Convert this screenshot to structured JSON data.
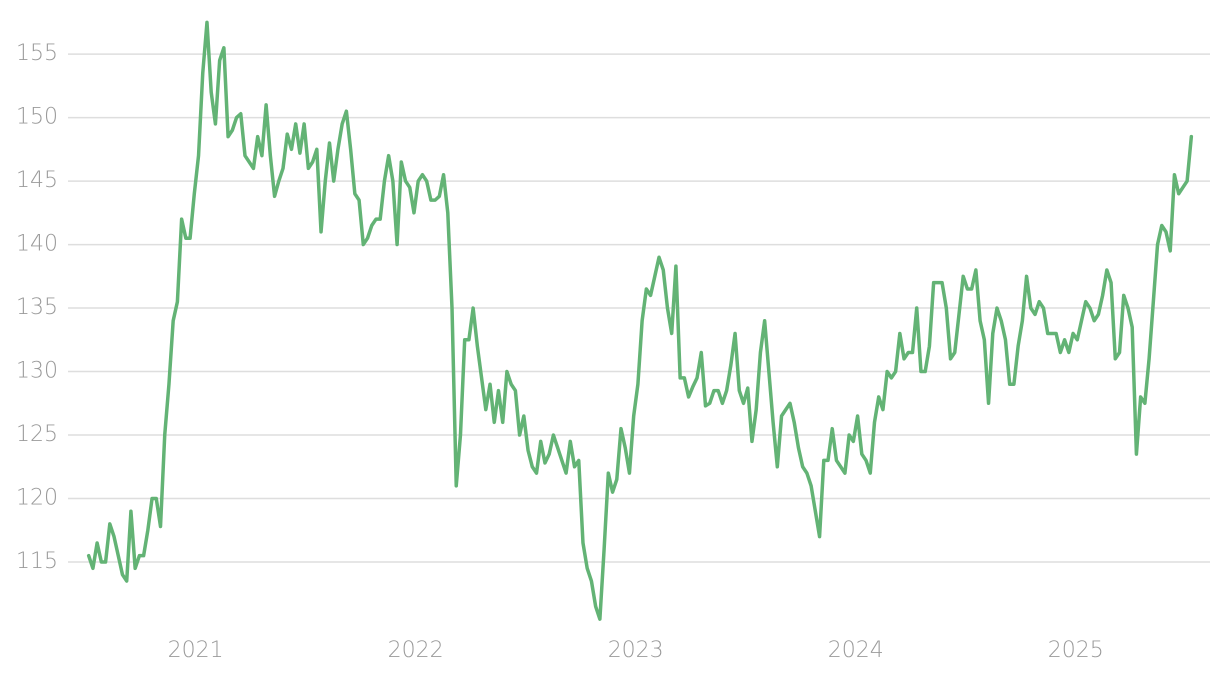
{
  "chart_data": {
    "type": "line",
    "color": "#63b375",
    "grid": true,
    "xlim": [
      2020.42,
      2025.61
    ],
    "ylim": [
      110,
      158
    ],
    "xticks": [
      2021,
      2022,
      2023,
      2024,
      2025
    ],
    "yticks": [
      115,
      120,
      125,
      130,
      135,
      140,
      145,
      150,
      155
    ],
    "x": [
      2020.514,
      2020.5332,
      2020.5524,
      2020.5716,
      2020.5908,
      2020.61,
      2020.6292,
      2020.6484,
      2020.6676,
      2020.6868,
      2020.706,
      2020.7252,
      2020.7444,
      2020.7636,
      2020.7828,
      2020.802,
      2020.8212,
      2020.8404,
      2020.8596,
      2020.8788,
      2020.898,
      2020.9172,
      2020.9364,
      2020.9556,
      2020.9748,
      2020.994,
      2021.0132,
      2021.0324,
      2021.0516,
      2021.0708,
      2021.09,
      2021.1092,
      2021.1284,
      2021.1476,
      2021.1668,
      2021.186,
      2021.2052,
      2021.2244,
      2021.2436,
      2021.2628,
      2021.282,
      2021.3012,
      2021.3204,
      2021.3396,
      2021.3588,
      2021.378,
      2021.3972,
      2021.4164,
      2021.4356,
      2021.4548,
      2021.474,
      2021.4932,
      2021.5124,
      2021.5316,
      2021.5508,
      2021.57,
      2021.5892,
      2021.6084,
      2021.6276,
      2021.6468,
      2021.666,
      2021.6852,
      2021.7044,
      2021.7236,
      2021.7428,
      2021.762,
      2021.7812,
      2021.8004,
      2021.8196,
      2021.8388,
      2021.858,
      2021.8772,
      2021.8964,
      2021.9156,
      2021.9348,
      2021.954,
      2021.9732,
      2021.9924,
      2022.0116,
      2022.0308,
      2022.05,
      2022.0692,
      2022.0884,
      2022.1076,
      2022.1268,
      2022.146,
      2022.1652,
      2022.1844,
      2022.2036,
      2022.2228,
      2022.242,
      2022.2612,
      2022.2804,
      2022.2996,
      2022.3188,
      2022.338,
      2022.3572,
      2022.3764,
      2022.3956,
      2022.4148,
      2022.434,
      2022.4532,
      2022.4724,
      2022.4916,
      2022.5108,
      2022.53,
      2022.5492,
      2022.5684,
      2022.5876,
      2022.6068,
      2022.626,
      2022.6452,
      2022.6644,
      2022.6836,
      2022.7028,
      2022.722,
      2022.7412,
      2022.7604,
      2022.7796,
      2022.7988,
      2022.818,
      2022.8372,
      2022.8564,
      2022.8756,
      2022.8948,
      2022.914,
      2022.9332,
      2022.9524,
      2022.9716,
      2022.9908,
      2023.01,
      2023.0292,
      2023.0484,
      2023.0676,
      2023.0868,
      2023.106,
      2023.1252,
      2023.1444,
      2023.1636,
      2023.1828,
      2023.202,
      2023.2212,
      2023.2404,
      2023.2596,
      2023.2788,
      2023.298,
      2023.3172,
      2023.3364,
      2023.3556,
      2023.3748,
      2023.394,
      2023.4132,
      2023.4324,
      2023.4516,
      2023.4708,
      2023.49,
      2023.5092,
      2023.5284,
      2023.5476,
      2023.5668,
      2023.586,
      2023.6052,
      2023.6244,
      2023.6436,
      2023.6628,
      2023.682,
      2023.7012,
      2023.7204,
      2023.7396,
      2023.7588,
      2023.778,
      2023.7972,
      2023.8164,
      2023.8356,
      2023.8548,
      2023.874,
      2023.8932,
      2023.9124,
      2023.9316,
      2023.9508,
      2023.97,
      2023.9892,
      2024.0084,
      2024.0276,
      2024.0468,
      2024.066,
      2024.0852,
      2024.1044,
      2024.1236,
      2024.1428,
      2024.162,
      2024.1812,
      2024.2004,
      2024.2196,
      2024.2388,
      2024.258,
      2024.2772,
      2024.2964,
      2024.3156,
      2024.3348,
      2024.354,
      2024.3732,
      2024.3924,
      2024.4116,
      2024.4308,
      2024.45,
      2024.4692,
      2024.4884,
      2024.5076,
      2024.5268,
      2024.546,
      2024.5652,
      2024.5844,
      2024.6036,
      2024.6228,
      2024.642,
      2024.6612,
      2024.6804,
      2024.6996,
      2024.7188,
      2024.738,
      2024.7572,
      2024.7764,
      2024.7956,
      2024.8148,
      2024.834,
      2024.8532,
      2024.8724,
      2024.8916,
      2024.9108,
      2024.93,
      2024.9492,
      2024.9684,
      2024.9876,
      2025.0068,
      2025.026,
      2025.0452,
      2025.0644,
      2025.0836,
      2025.1028,
      2025.122,
      2025.1412,
      2025.1604,
      2025.1796,
      2025.1988,
      2025.218,
      2025.2372,
      2025.2564,
      2025.2756,
      2025.2948,
      2025.314,
      2025.3332,
      2025.3524,
      2025.3716,
      2025.3908,
      2025.41,
      2025.4292,
      2025.4484,
      2025.4676,
      2025.4868,
      2025.506,
      2025.5252
    ],
    "values": [
      115.5,
      114.5,
      116.5,
      115,
      115,
      118,
      117,
      115.5,
      114,
      113.5,
      119,
      114.5,
      115.5,
      115.5,
      117.5,
      120,
      120,
      117.8,
      125,
      129,
      134,
      135.5,
      142,
      140.5,
      140.5,
      144,
      147,
      153.5,
      157.5,
      152,
      149.5,
      154.5,
      155.5,
      148.5,
      149,
      150,
      150.3,
      147,
      146.5,
      146,
      148.5,
      147,
      151,
      147,
      143.8,
      145,
      146,
      148.7,
      147.5,
      149.5,
      147.2,
      149.5,
      146,
      146.5,
      147.5,
      141,
      145,
      148,
      145,
      147.5,
      149.5,
      150.5,
      147.5,
      144,
      143.5,
      140,
      140.5,
      141.5,
      142,
      142,
      145,
      147,
      145,
      140,
      146.5,
      145,
      144.5,
      142.5,
      145,
      145.5,
      145,
      143.5,
      143.5,
      143.8,
      145.5,
      142.5,
      135,
      121,
      125,
      132.5,
      132.5,
      135,
      132,
      129.5,
      127,
      129,
      126,
      128.5,
      126,
      130,
      129,
      128.5,
      125,
      126.5,
      123.8,
      122.5,
      122,
      124.5,
      122.8,
      123.5,
      125,
      124,
      123,
      122,
      124.5,
      122.5,
      123,
      116.5,
      114.5,
      113.5,
      111.5,
      110.5,
      116,
      122,
      120.5,
      121.5,
      125.5,
      124,
      122,
      126.5,
      129,
      134,
      136.5,
      136,
      137.5,
      139,
      138,
      135,
      133,
      138.3,
      129.5,
      129.5,
      128,
      128.8,
      129.5,
      131.5,
      127.3,
      127.5,
      128.5,
      128.5,
      127.5,
      128.5,
      130.5,
      133,
      128.5,
      127.5,
      128.7,
      124.5,
      127,
      131.5,
      134,
      130,
      126,
      122.5,
      126.5,
      127,
      127.5,
      126,
      124,
      122.5,
      122,
      121,
      119,
      117,
      123,
      123,
      125.5,
      123,
      122.5,
      122,
      125,
      124.5,
      126.5,
      123.5,
      123,
      122,
      126,
      128,
      127,
      130,
      129.5,
      130,
      133,
      131,
      131.5,
      131.5,
      135,
      130,
      130,
      132,
      137,
      137,
      137,
      135,
      131,
      131.5,
      134.5,
      137.5,
      136.5,
      136.5,
      138,
      134,
      132.5,
      127.5,
      133,
      135,
      134,
      132.5,
      129,
      129,
      132,
      134,
      137.5,
      135,
      134.5,
      135.5,
      135,
      133,
      133,
      133,
      131.5,
      132.5,
      131.5,
      133,
      132.5,
      134,
      135.5,
      135,
      134,
      134.5,
      136,
      138,
      137,
      131,
      131.5,
      136,
      135,
      133.5,
      123.5,
      128,
      127.5,
      131,
      135.5,
      140,
      141.5,
      141,
      139.5,
      145.5,
      144,
      144.5,
      145,
      148.5
    ]
  }
}
